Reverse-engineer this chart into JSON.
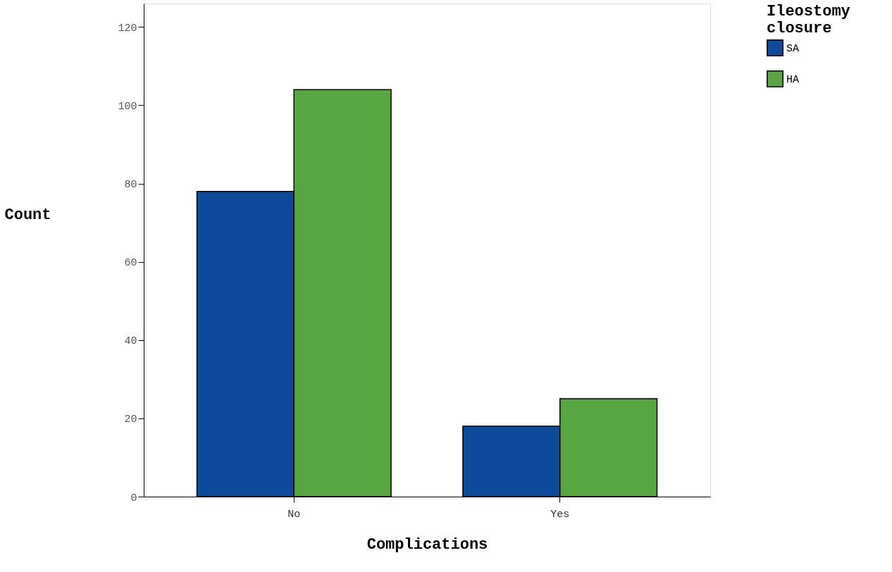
{
  "chart_data": {
    "type": "bar",
    "xlabel": "Complications",
    "ylabel": "Count",
    "legend_title": "Ileostomy closure",
    "categories": [
      "No",
      "Yes"
    ],
    "series": [
      {
        "name": "SA",
        "color": "#0d4a9a",
        "values": [
          78,
          18
        ]
      },
      {
        "name": "HA",
        "color": "#58a641",
        "values": [
          104,
          25
        ]
      }
    ],
    "ylim": [
      0,
      126
    ],
    "yticks": [
      0,
      20,
      40,
      60,
      80,
      100,
      120
    ],
    "grid": false,
    "legend": "right"
  }
}
